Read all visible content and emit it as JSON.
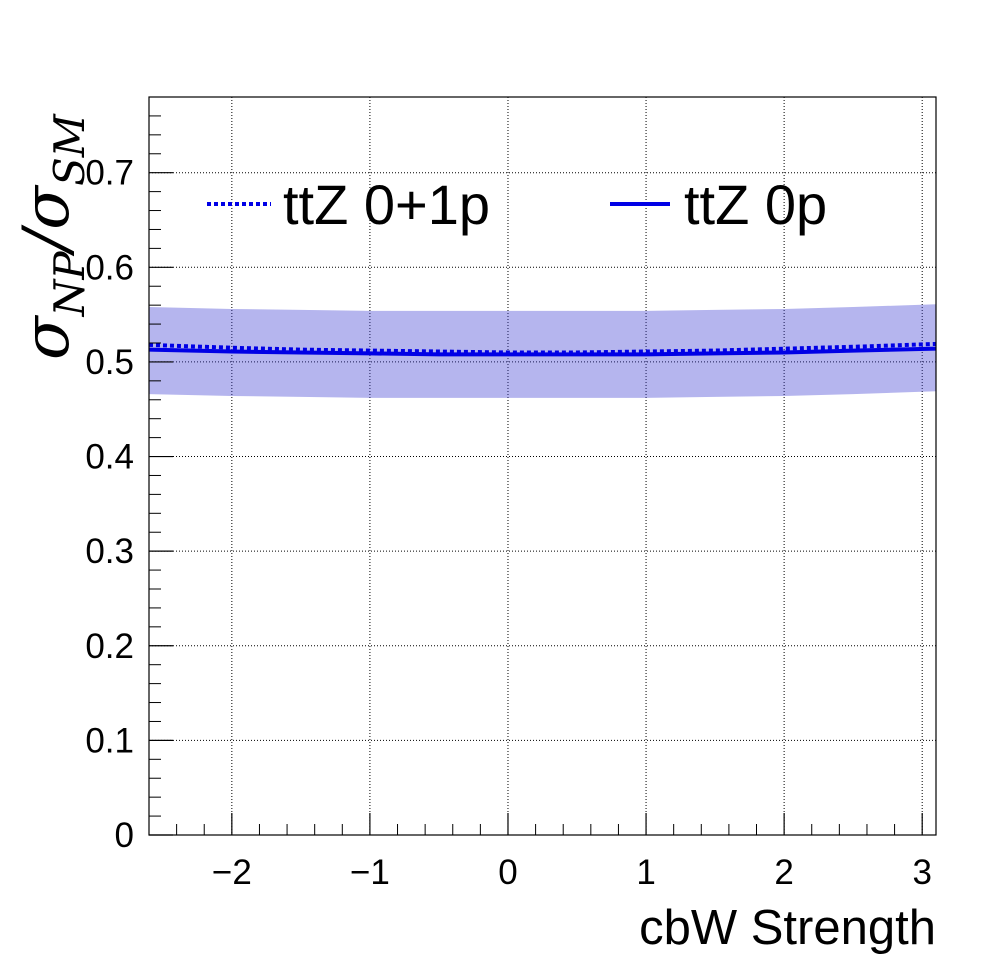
{
  "chart_data": {
    "type": "line",
    "xlabel": "cbW Strength",
    "ylabel": {
      "symbol": "σ",
      "numerator_sub": "NP",
      "denominator_sub": "SM"
    },
    "xlim": [
      -2.6,
      3.1
    ],
    "ylim": [
      0,
      0.78
    ],
    "x_ticks": [
      -2,
      -1,
      0,
      1,
      2,
      3
    ],
    "x_tick_labels": [
      "−2",
      "−1",
      "0",
      "1",
      "2",
      "3"
    ],
    "y_ticks": [
      0,
      0.1,
      0.2,
      0.3,
      0.4,
      0.5,
      0.6,
      0.7
    ],
    "y_tick_labels": [
      "0",
      "0.1",
      "0.2",
      "0.3",
      "0.4",
      "0.5",
      "0.6",
      "0.7"
    ],
    "grid": true,
    "legend_position": "top",
    "x": [
      -2.6,
      -2.0,
      -1.5,
      -1.0,
      -0.5,
      0.0,
      0.5,
      1.0,
      1.5,
      2.0,
      2.5,
      3.1
    ],
    "series": [
      {
        "name": "ttZ 0+1p",
        "style": "dotted",
        "color": "#0000e6",
        "values": [
          0.518,
          0.515,
          0.513,
          0.512,
          0.511,
          0.51,
          0.51,
          0.511,
          0.512,
          0.514,
          0.516,
          0.519
        ]
      },
      {
        "name": "ttZ 0p",
        "style": "solid",
        "color": "#0000e6",
        "values": [
          0.513,
          0.511,
          0.51,
          0.509,
          0.508,
          0.508,
          0.508,
          0.508,
          0.509,
          0.51,
          0.512,
          0.514
        ],
        "band_upper": [
          0.558,
          0.556,
          0.555,
          0.554,
          0.554,
          0.554,
          0.554,
          0.554,
          0.555,
          0.556,
          0.558,
          0.561
        ],
        "band_lower": [
          0.466,
          0.464,
          0.463,
          0.462,
          0.462,
          0.462,
          0.462,
          0.462,
          0.463,
          0.464,
          0.466,
          0.469
        ],
        "band_color": "#3c3cd2"
      }
    ]
  }
}
